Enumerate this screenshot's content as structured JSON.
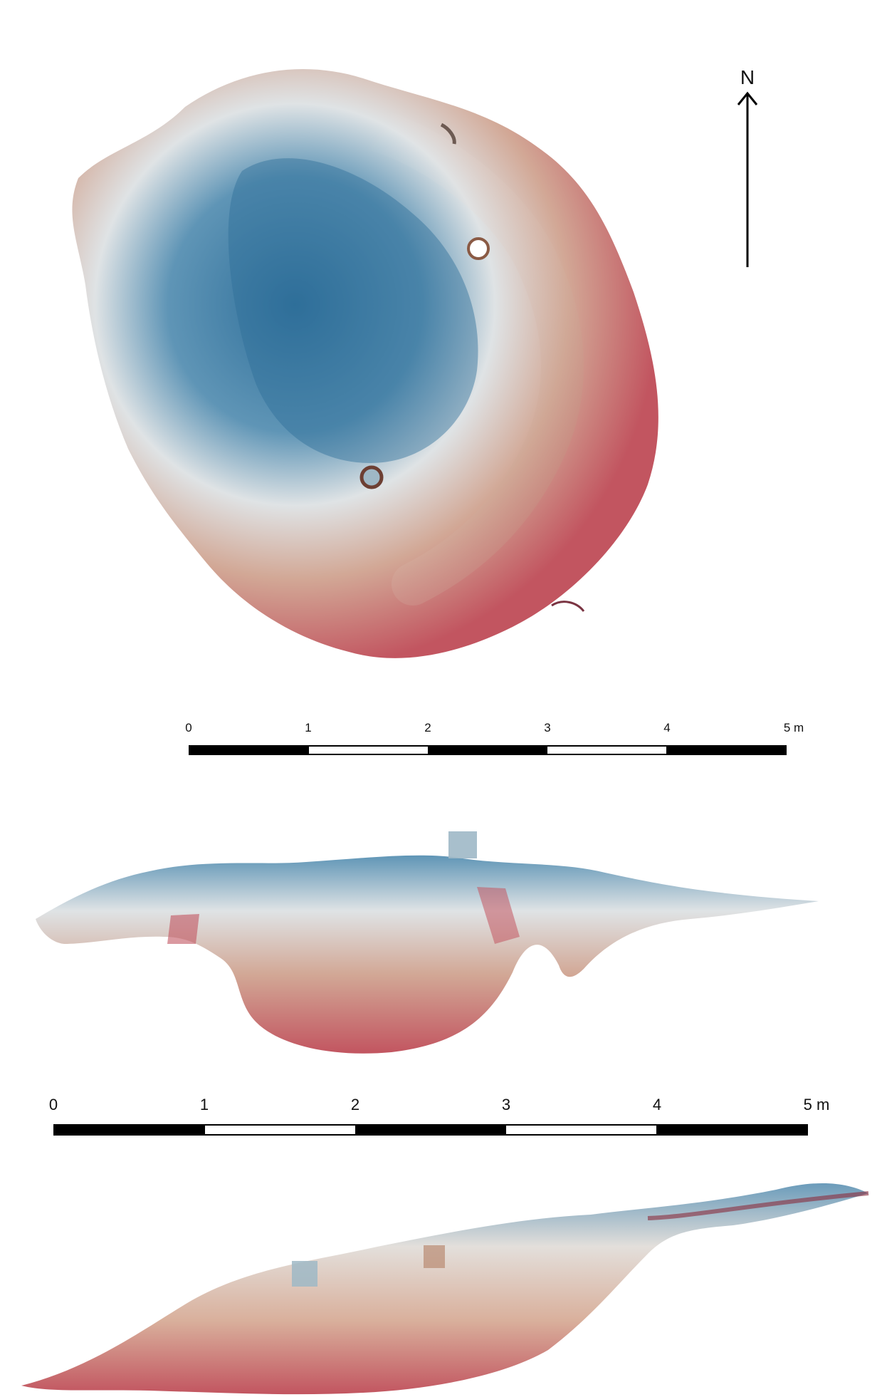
{
  "north_arrow": {
    "label": "N"
  },
  "scale_bars": [
    {
      "ticks": [
        "0",
        "1",
        "2",
        "3",
        "4",
        "5 m"
      ]
    },
    {
      "ticks": [
        "0",
        "1",
        "2",
        "3",
        "4",
        "5 m"
      ]
    }
  ],
  "colors": {
    "low": "#2f6f9a",
    "mid": "#e9e4df",
    "high": "#c25560",
    "brown": "#b98a72"
  }
}
